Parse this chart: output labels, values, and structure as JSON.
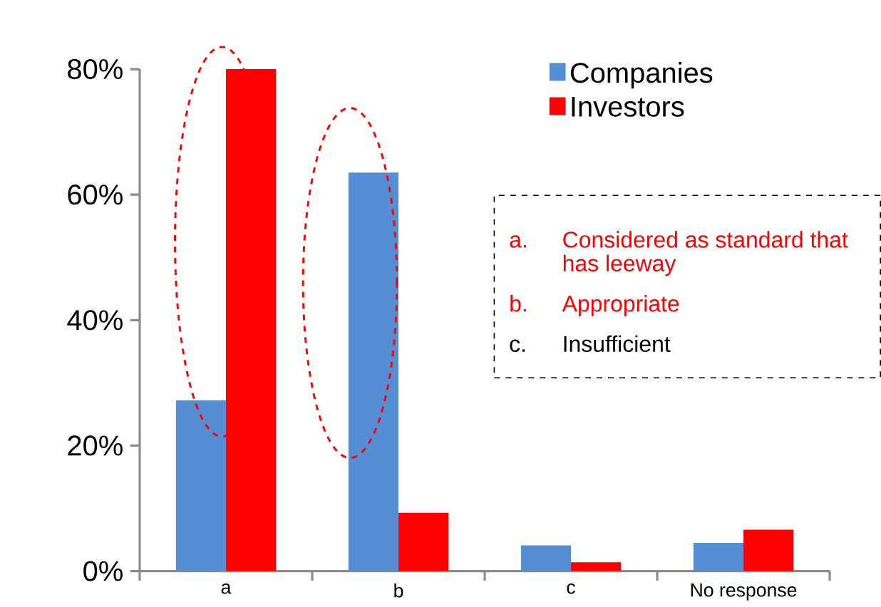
{
  "chart_data": {
    "type": "bar",
    "categories": [
      "a",
      "b",
      "c",
      "No response"
    ],
    "series": [
      {
        "name": "Companies",
        "color": "#558ed5",
        "values": [
          27.2,
          63.5,
          4.1,
          4.5
        ]
      },
      {
        "name": "Investors",
        "color": "#ff0000",
        "values": [
          80,
          9.3,
          1.4,
          6.6
        ]
      }
    ],
    "ylim": [
      0,
      80
    ],
    "yticks": [
      {
        "value": 0,
        "label": "0%"
      },
      {
        "value": 20,
        "label": "20%"
      },
      {
        "value": 40,
        "label": "40%"
      },
      {
        "value": 60,
        "label": "60%"
      },
      {
        "value": 80,
        "label": "80%"
      }
    ],
    "grid": false,
    "legend": "top right",
    "annotations": [
      "a.",
      "Considered as standard that has leeway",
      "b.",
      "Appropriate",
      "c.",
      "Insufficient"
    ]
  }
}
